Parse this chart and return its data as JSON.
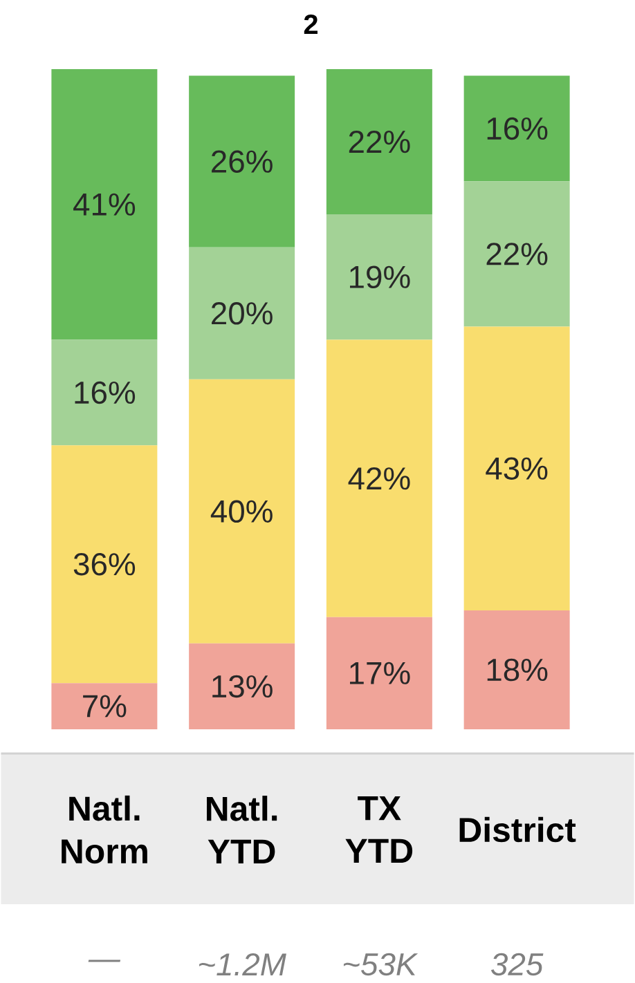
{
  "chart_data": {
    "type": "bar",
    "title": "2",
    "stacked": true,
    "categories": [
      "Natl. Norm",
      "Natl. YTD",
      "TX YTD",
      "District"
    ],
    "series": [
      {
        "color": "#f0a499",
        "values": [
          7,
          13,
          17,
          18
        ],
        "value_labels": [
          "7%",
          "13%",
          "17%",
          "18%"
        ]
      },
      {
        "color": "#f9dd6e",
        "values": [
          36,
          40,
          42,
          43
        ],
        "value_labels": [
          "36%",
          "40%",
          "42%",
          "43%"
        ]
      },
      {
        "color": "#a3d296",
        "values": [
          16,
          20,
          19,
          22
        ],
        "value_labels": [
          "16%",
          "20%",
          "19%",
          "22%"
        ]
      },
      {
        "color": "#67bb5b",
        "values": [
          41,
          26,
          22,
          16
        ],
        "value_labels": [
          "41%",
          "26%",
          "22%",
          "16%"
        ]
      }
    ],
    "annotations": [
      "—",
      "~1.2M",
      "~53K",
      "325"
    ]
  }
}
